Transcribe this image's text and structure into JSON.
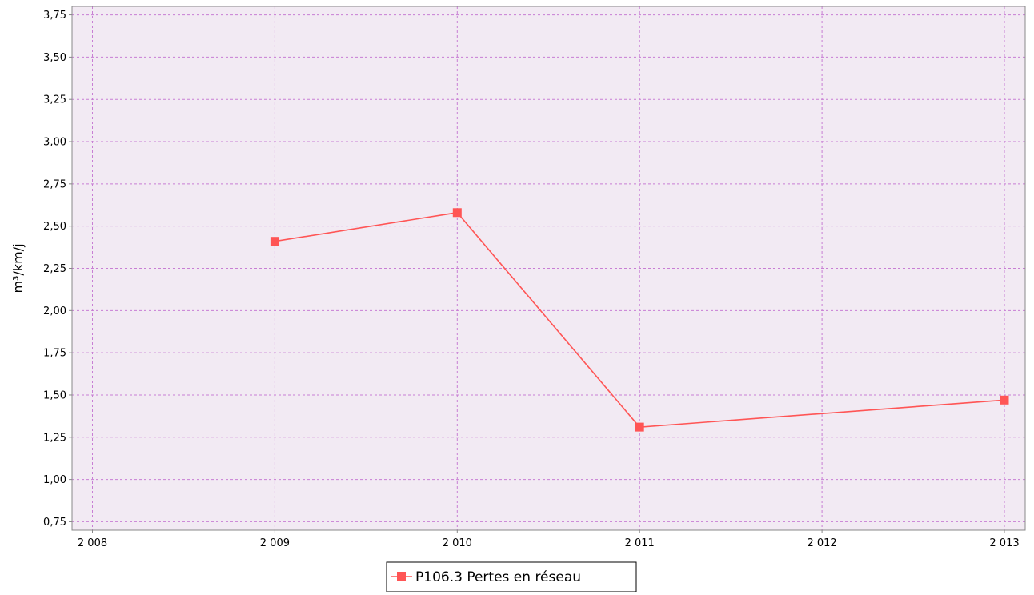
{
  "chart_data": {
    "type": "line",
    "title": "",
    "xlabel": "",
    "ylabel": "m³/km/j",
    "x": [
      2009,
      2010,
      2011,
      2013
    ],
    "series": [
      {
        "name": "P106.3 Pertes en réseau",
        "x": [
          2009,
          2010,
          2011,
          2013
        ],
        "values": [
          2.41,
          2.58,
          1.31,
          1.47
        ],
        "color": "#ff5555"
      }
    ],
    "xlim": [
      2008,
      2013
    ],
    "ylim": [
      0.7,
      3.8
    ],
    "xticks": [
      2008,
      2009,
      2010,
      2011,
      2012,
      2013
    ],
    "xtick_labels": [
      "2 008",
      "2 009",
      "2 010",
      "2 011",
      "2 012",
      "2 013"
    ],
    "yticks": [
      0.75,
      1.0,
      1.25,
      1.5,
      1.75,
      2.0,
      2.25,
      2.5,
      2.75,
      3.0,
      3.25,
      3.5,
      3.75
    ],
    "ytick_labels": [
      "0,75",
      "1,00",
      "1,25",
      "1,50",
      "1,75",
      "2,00",
      "2,25",
      "2,50",
      "2,75",
      "3,00",
      "3,25",
      "3,50",
      "3,75"
    ],
    "grid": true,
    "legend_position": "bottom-center",
    "colors": {
      "plot_background": "#f2eaf3",
      "grid": "#c87ed4",
      "axis": "#888888",
      "text": "#000000",
      "legend_border": "#000000"
    }
  }
}
